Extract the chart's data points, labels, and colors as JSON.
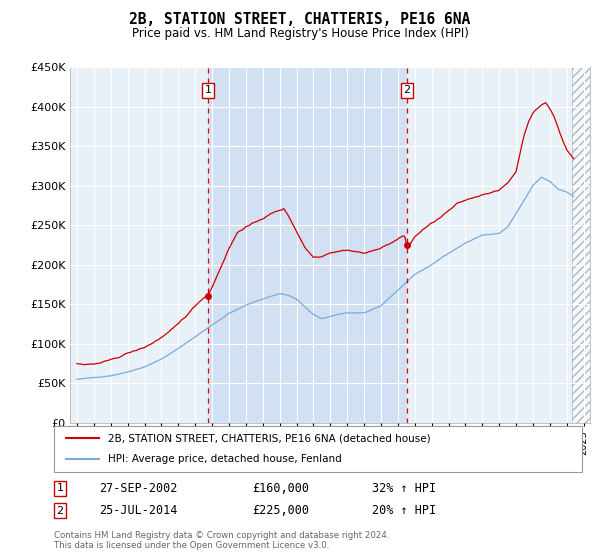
{
  "title": "2B, STATION STREET, CHATTERIS, PE16 6NA",
  "subtitle": "Price paid vs. HM Land Registry's House Price Index (HPI)",
  "legend_property": "2B, STATION STREET, CHATTERIS, PE16 6NA (detached house)",
  "legend_hpi": "HPI: Average price, detached house, Fenland",
  "footer": "Contains HM Land Registry data © Crown copyright and database right 2024.\nThis data is licensed under the Open Government Licence v3.0.",
  "sale1_label": "1",
  "sale1_date": "27-SEP-2002",
  "sale1_price": "£160,000",
  "sale1_hpi": "32% ↑ HPI",
  "sale1_year": 2002.75,
  "sale1_value": 160000,
  "sale2_label": "2",
  "sale2_date": "25-JUL-2014",
  "sale2_price": "£225,000",
  "sale2_hpi": "20% ↑ HPI",
  "sale2_year": 2014.55,
  "sale2_value": 225000,
  "ylim": [
    0,
    450000
  ],
  "xlim": [
    1994.6,
    2025.4
  ],
  "background_color": "#dce9f5",
  "plot_bg": "#e8f0f8",
  "shade_color": "#c8daf0",
  "line_property_color": "#cc0000",
  "line_hpi_color": "#7aabdc",
  "hatch_start": 2024.33,
  "yticks": [
    0,
    50000,
    100000,
    150000,
    200000,
    250000,
    300000,
    350000,
    400000,
    450000
  ],
  "ytick_labels": [
    "£0",
    "£50K",
    "£100K",
    "£150K",
    "£200K",
    "£250K",
    "£300K",
    "£350K",
    "£400K",
    "£450K"
  ]
}
